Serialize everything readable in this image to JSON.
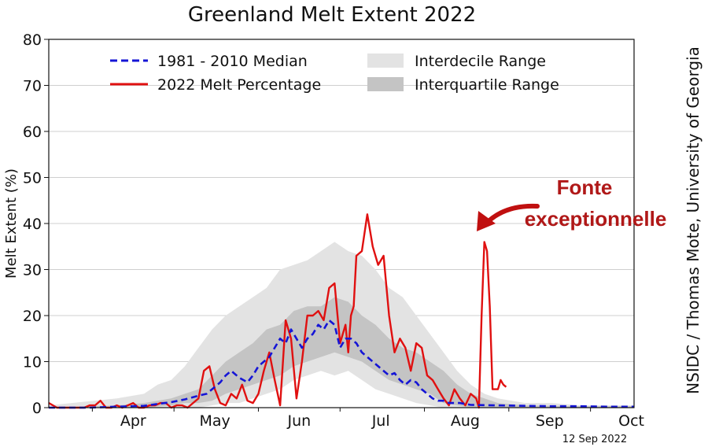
{
  "chart_data": {
    "type": "line",
    "title": "Greenland Melt Extent 2022",
    "ylabel": "Melt Extent (%)",
    "xlabel": "",
    "ylim": [
      0,
      80
    ],
    "xlim": [
      75,
      290
    ],
    "yticks": [
      0,
      10,
      20,
      30,
      40,
      50,
      60,
      70,
      80
    ],
    "months": [
      {
        "label": "Apr",
        "day": 91
      },
      {
        "label": "May",
        "day": 121
      },
      {
        "label": "Jun",
        "day": 152
      },
      {
        "label": "Jul",
        "day": 182
      },
      {
        "label": "Aug",
        "day": 213
      },
      {
        "label": "Sep",
        "day": 244
      },
      {
        "label": "Oct",
        "day": 274
      }
    ],
    "grid": true,
    "legend_position": "top",
    "legend": {
      "median": "1981 - 2010 Median",
      "melt": "2022 Melt Percentage",
      "interdecile": "Interdecile Range",
      "interquartile": "Interquartile Range"
    },
    "colors": {
      "median": "#1515d6",
      "melt": "#e01010",
      "interdecile": "#e3e3e3",
      "interquartile": "#c4c4c4",
      "grid": "#cfcfcf",
      "annotation": "#b01818"
    },
    "series": [
      {
        "name": "2022 Melt Percentage",
        "style": "solid",
        "x": [
          75,
          78,
          80,
          82,
          85,
          88,
          90,
          92,
          94,
          96,
          98,
          100,
          102,
          104,
          106,
          108,
          110,
          112,
          114,
          116,
          118,
          120,
          122,
          124,
          126,
          128,
          130,
          132,
          134,
          136,
          138,
          140,
          142,
          144,
          146,
          148,
          150,
          152,
          154,
          156,
          158,
          160,
          162,
          164,
          166,
          168,
          170,
          172,
          174,
          176,
          178,
          180,
          182,
          184,
          185,
          186,
          187,
          188,
          190,
          192,
          194,
          196,
          198,
          200,
          202,
          204,
          206,
          208,
          210,
          212,
          214,
          216,
          218,
          220,
          222,
          224,
          226,
          228,
          230,
          232,
          233,
          234,
          235,
          236,
          237,
          238,
          239,
          240,
          241,
          242,
          243
        ],
        "values": [
          1,
          0,
          0,
          0,
          0,
          0,
          0.5,
          0.5,
          1.5,
          0,
          0,
          0.5,
          0,
          0.5,
          1,
          0,
          0,
          0.5,
          0.5,
          1,
          1,
          0,
          0.5,
          0.5,
          0,
          1,
          2,
          8,
          9,
          4,
          1,
          0.5,
          3,
          2,
          5,
          1.5,
          1,
          3,
          8,
          12,
          6,
          0.5,
          19,
          15,
          2,
          10,
          20,
          20,
          21,
          19,
          26,
          27,
          14,
          18,
          12,
          20,
          22,
          33,
          34,
          42,
          35,
          31,
          33,
          20,
          12,
          15,
          13,
          8,
          14,
          13,
          7,
          6,
          4,
          2,
          0.5,
          4,
          2,
          0.5,
          3,
          2,
          0,
          20,
          36,
          34,
          22,
          4,
          4,
          4,
          6,
          5,
          4.5
        ]
      },
      {
        "name": "1981 - 2010 Median",
        "style": "dashed",
        "x": [
          75,
          90,
          100,
          110,
          115,
          120,
          125,
          130,
          133,
          135,
          138,
          140,
          142,
          145,
          148,
          150,
          152,
          154,
          156,
          158,
          160,
          162,
          164,
          166,
          168,
          170,
          172,
          174,
          176,
          178,
          180,
          182,
          184,
          186,
          188,
          190,
          192,
          194,
          196,
          198,
          200,
          202,
          204,
          206,
          208,
          210,
          212,
          214,
          216,
          218,
          220,
          222,
          224,
          226,
          228,
          230,
          240,
          250,
          260,
          270,
          280,
          290
        ],
        "values": [
          0,
          0,
          0.2,
          0.4,
          0.8,
          1.2,
          1.8,
          2.6,
          3,
          4,
          5.5,
          7,
          8,
          6.5,
          5.5,
          7,
          9,
          10,
          11,
          13,
          15,
          14,
          17,
          15,
          13,
          15,
          16,
          18,
          17,
          19,
          18,
          13,
          15,
          15,
          14,
          12,
          11,
          10,
          9,
          8,
          7,
          7.5,
          6,
          5,
          6,
          5.5,
          4,
          3,
          2,
          1.5,
          1.5,
          1,
          1,
          1,
          0.8,
          0.6,
          0.5,
          0.4,
          0.3,
          0.3,
          0.2,
          0.2
        ]
      },
      {
        "name": "Interdecile Range",
        "style": "band",
        "x": [
          75,
          100,
          110,
          115,
          120,
          125,
          130,
          135,
          140,
          145,
          150,
          155,
          160,
          165,
          170,
          175,
          180,
          185,
          190,
          195,
          200,
          205,
          210,
          215,
          220,
          225,
          230,
          235,
          240,
          250,
          260,
          270,
          290
        ],
        "lower": [
          0,
          0,
          0,
          0,
          0,
          0,
          0,
          0.5,
          1,
          1,
          2,
          3,
          4,
          6,
          7,
          8,
          7,
          8,
          6,
          4,
          3,
          2,
          1,
          0.5,
          0,
          0,
          0,
          0,
          0,
          0,
          0,
          0,
          0
        ],
        "upper": [
          0.5,
          2,
          3,
          5,
          6,
          9,
          13,
          17,
          20,
          22,
          24,
          26,
          30,
          31,
          32,
          34,
          36,
          34,
          33,
          30,
          26,
          24,
          20,
          16,
          12,
          8,
          5,
          3,
          2,
          1,
          1,
          0.5,
          0.5
        ]
      },
      {
        "name": "Interquartile Range",
        "style": "band",
        "x": [
          75,
          100,
          110,
          120,
          125,
          130,
          135,
          140,
          145,
          150,
          155,
          160,
          165,
          170,
          175,
          180,
          185,
          190,
          195,
          200,
          205,
          210,
          215,
          220,
          225,
          230,
          240,
          250,
          270,
          290
        ],
        "lower": [
          0,
          0,
          0,
          0.5,
          1,
          1,
          1.5,
          3,
          4,
          5,
          6,
          7,
          9,
          10,
          11,
          12,
          11,
          10,
          8,
          6,
          5,
          4,
          3,
          1,
          0.5,
          0,
          0,
          0,
          0,
          0
        ],
        "upper": [
          0,
          0.5,
          1,
          2,
          3,
          4,
          7,
          10,
          12,
          14,
          17,
          18,
          21,
          22,
          22,
          24,
          23,
          20,
          18,
          15,
          13,
          12,
          10,
          8,
          5,
          3,
          1,
          0.5,
          0.3,
          0.3
        ]
      }
    ],
    "annotation": {
      "lines": [
        "Fonte",
        "exceptionnelle"
      ]
    },
    "credit": "NSIDC / Thomas Mote, University of Georgia",
    "date": "12 Sep 2022"
  }
}
